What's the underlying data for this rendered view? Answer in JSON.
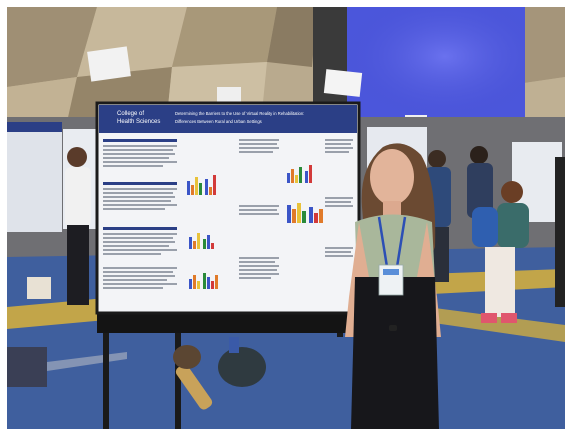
{
  "photo": {
    "description_visible": "",
    "poster": {
      "header_org_line1": "College of",
      "header_org_line2": "Health Sciences",
      "title_line1": "Determining the Barriers to the Use of Virtual Reality in Rehabilitation:",
      "title_line2": "Differences Between Rural and Urban Settings"
    },
    "colors": {
      "poster_header": "#2b3f86",
      "floor_blue": "#3f5f9e",
      "floor_yellow": "#d9b23a",
      "screen_blue": "#4f5ae0"
    }
  }
}
